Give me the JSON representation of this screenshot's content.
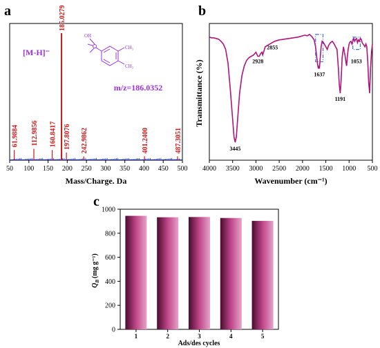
{
  "panels": {
    "a": {
      "letter": "a"
    },
    "b": {
      "letter": "b"
    },
    "c": {
      "letter": "c"
    }
  },
  "colors": {
    "ms_peak": "#d01818",
    "ms_baseline": "#1a2fd0",
    "ms_annot": "#9b30e8",
    "ir_line": "#b0137e",
    "box": "#3a6fd8",
    "bar_dark": "#4a0b2e",
    "bar_mid": "#c0468a",
    "bar_light": "#e6a3c8"
  },
  "chart_data": [
    {
      "type": "bar",
      "panel": "a",
      "xlabel": "Mass/Charge. Da",
      "ylabel": "",
      "xlim": [
        50,
        500
      ],
      "ylim": [
        0,
        100
      ],
      "x_ticks": [
        50,
        100,
        150,
        200,
        250,
        300,
        350,
        400,
        450,
        500
      ],
      "annotation_ion": "[M-H]⁻",
      "annotation_mz": "m/z=186.0352",
      "structure_labels": {
        "oh": "OH",
        "me1": "CH₃",
        "me2": "CH₃"
      },
      "peaks": [
        {
          "x": 61.9884,
          "y": 8,
          "label": "61.9884"
        },
        {
          "x": 112.9856,
          "y": 9,
          "label": "112.9856"
        },
        {
          "x": 160.8417,
          "y": 8,
          "label": "160.8417"
        },
        {
          "x": 185.0279,
          "y": 100,
          "label": "185.0279"
        },
        {
          "x": 197.8076,
          "y": 6,
          "label": "197.8076"
        },
        {
          "x": 242.9862,
          "y": 3,
          "label": "242.9862"
        },
        {
          "x": 401.24,
          "y": 3,
          "label": "401.2400"
        },
        {
          "x": 487.3051,
          "y": 3,
          "label": "487.3051"
        }
      ]
    },
    {
      "type": "line",
      "panel": "b",
      "xlabel": "Wavenumber (cm⁻¹)",
      "ylabel": "Transmittance (%)",
      "xlim": [
        4000,
        500
      ],
      "x_ticks": [
        4000,
        3500,
        3000,
        2500,
        2000,
        1500,
        1000,
        500
      ],
      "series": [
        {
          "x": [
            4000,
            3950,
            3900,
            3850,
            3800,
            3750,
            3700,
            3650,
            3600,
            3550,
            3500,
            3470,
            3445,
            3420,
            3390,
            3350,
            3300,
            3250,
            3200,
            3150,
            3100,
            3050,
            3000,
            2960,
            2928,
            2900,
            2870,
            2855,
            2800,
            2700,
            2600,
            2500,
            2400,
            2300,
            2200,
            2100,
            2000,
            1950,
            1900,
            1850,
            1800,
            1750,
            1720,
            1700,
            1680,
            1660,
            1650,
            1637,
            1620,
            1600,
            1580,
            1550,
            1500,
            1470,
            1440,
            1400,
            1360,
            1320,
            1290,
            1260,
            1230,
            1210,
            1191,
            1170,
            1150,
            1120,
            1100,
            1080,
            1065,
            1053,
            1040,
            1020,
            1000,
            980,
            960,
            940,
            920,
            900,
            880,
            860,
            840,
            820,
            800,
            780,
            760,
            740,
            720,
            700,
            680,
            660,
            640,
            620,
            600,
            580,
            560,
            540,
            520,
            500
          ],
          "y": [
            93,
            92.5,
            92.5,
            92,
            91.5,
            90,
            88,
            84,
            74,
            55,
            33,
            20,
            16,
            20,
            34,
            52,
            65,
            72,
            76,
            78,
            79,
            80,
            82,
            79,
            79,
            81,
            82,
            80,
            86,
            88,
            90,
            91,
            91.5,
            92,
            92.5,
            93,
            94,
            94.5,
            94,
            95,
            93.5,
            91,
            86,
            80,
            74,
            70,
            72,
            70,
            78,
            86,
            90,
            89,
            86,
            84,
            87,
            89,
            90,
            88,
            86,
            84,
            70,
            58,
            52,
            62,
            78,
            86,
            82,
            78,
            74,
            72,
            78,
            84,
            88,
            89.5,
            90,
            88,
            90,
            92,
            90,
            91.5,
            92,
            89,
            91,
            90,
            92,
            91.5,
            89,
            88,
            87,
            86,
            88,
            86,
            75,
            60,
            52,
            70,
            82,
            88
          ]
        }
      ],
      "annotations": [
        {
          "text": "3445",
          "x": 3445
        },
        {
          "text": "2928",
          "x": 2928
        },
        {
          "text": "2855",
          "x": 2855
        },
        {
          "text": "1637",
          "x": 1637
        },
        {
          "text": "1191",
          "x": 1191
        },
        {
          "text": "1053",
          "x": 1053
        }
      ]
    },
    {
      "type": "bar",
      "panel": "c",
      "xlabel": "Ads/des cycles",
      "ylabel_main": "Q",
      "ylabel_sub": "B",
      "ylabel_unit": "(mg g⁻¹)",
      "categories": [
        "1",
        "2",
        "3",
        "4",
        "5"
      ],
      "values": [
        945,
        933,
        935,
        927,
        903
      ],
      "ylim": [
        0,
        1000
      ],
      "y_ticks": [
        0,
        200,
        400,
        600,
        800,
        1000
      ]
    }
  ]
}
